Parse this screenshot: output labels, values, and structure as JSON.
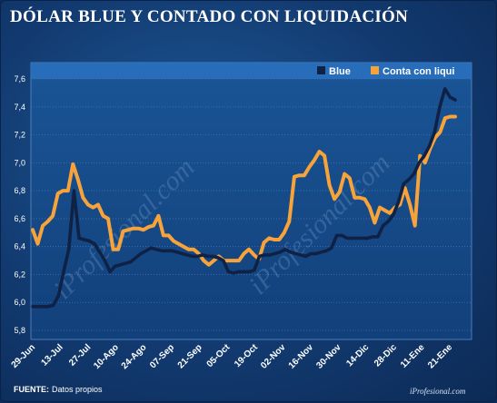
{
  "title": "DÓLAR BLUE Y CONTADO CON LIQUIDACIÓN",
  "source": {
    "label": "FUENTE:",
    "text": "Datos propios"
  },
  "credit": "iProfesional.com",
  "watermark": "iProfesional.com",
  "colors": {
    "blue_series": "#0f2246",
    "ccl_series": "#f7a33a",
    "plot_bg": "#164a86",
    "legend_bg": "#2a72bf",
    "grid": "#4c7fbe"
  },
  "chart_data": {
    "type": "line",
    "title": "DÓLAR BLUE Y CONTADO CON LIQUIDACIÓN",
    "xlabel": "",
    "ylabel": "",
    "ylim": [
      5.8,
      7.6
    ],
    "yticks": [
      "5,8",
      "6,0",
      "6,2",
      "6,4",
      "6,6",
      "6,8",
      "7,0",
      "7,2",
      "7,4",
      "7,6"
    ],
    "grid": true,
    "legend_position": "top-right",
    "xtick_labels": [
      "29-Jun",
      "13-Jul",
      "27-Jul",
      "10-Ago",
      "24-Ago",
      "07-Sep",
      "21-Sep",
      "05-Oct",
      "19-Oct",
      "02-Nov",
      "16-Nov",
      "30-Nov",
      "14-Dic",
      "28-Dic",
      "11-Ene",
      "21-Ene"
    ],
    "series": [
      {
        "name": "Blue",
        "color": "#0f2246",
        "values": [
          5.97,
          5.97,
          5.97,
          5.97,
          5.98,
          6.05,
          6.22,
          6.38,
          6.8,
          6.46,
          6.45,
          6.44,
          6.42,
          6.36,
          6.3,
          6.22,
          6.26,
          6.27,
          6.28,
          6.29,
          6.32,
          6.35,
          6.37,
          6.39,
          6.38,
          6.37,
          6.37,
          6.37,
          6.36,
          6.35,
          6.34,
          6.33,
          6.33,
          6.34,
          6.33,
          6.33,
          6.32,
          6.3,
          6.22,
          6.21,
          6.22,
          6.22,
          6.22,
          6.23,
          6.33,
          6.34,
          6.34,
          6.35,
          6.36,
          6.38,
          6.36,
          6.35,
          6.34,
          6.33,
          6.35,
          6.35,
          6.36,
          6.37,
          6.39,
          6.48,
          6.48,
          6.46,
          6.46,
          6.46,
          6.46,
          6.46,
          6.47,
          6.47,
          6.55,
          6.58,
          6.63,
          6.72,
          6.85,
          6.88,
          6.92,
          7.0,
          7.05,
          7.12,
          7.22,
          7.4,
          7.53,
          7.47,
          7.45
        ]
      },
      {
        "name": "Conta con liqui",
        "color": "#f7a33a",
        "values": [
          6.52,
          6.42,
          6.55,
          6.58,
          6.62,
          6.78,
          6.8,
          6.8,
          6.99,
          6.88,
          6.75,
          6.7,
          6.68,
          6.7,
          6.62,
          6.6,
          6.38,
          6.38,
          6.51,
          6.52,
          6.53,
          6.53,
          6.52,
          6.54,
          6.55,
          6.62,
          6.48,
          6.48,
          6.44,
          6.42,
          6.4,
          6.38,
          6.38,
          6.35,
          6.3,
          6.27,
          6.3,
          6.33,
          6.3,
          6.3,
          6.3,
          6.3,
          6.35,
          6.38,
          6.34,
          6.31,
          6.43,
          6.46,
          6.45,
          6.45,
          6.5,
          6.58,
          6.9,
          6.91,
          6.91,
          6.97,
          7.02,
          7.08,
          7.05,
          6.84,
          6.74,
          6.79,
          6.92,
          6.89,
          6.75,
          6.75,
          6.74,
          6.68,
          6.57,
          6.68,
          6.66,
          6.64,
          6.68,
          6.7,
          6.82,
          6.7,
          6.55,
          7.05,
          7.0,
          7.1,
          7.18,
          7.22,
          7.32,
          7.33,
          7.33
        ]
      }
    ]
  }
}
